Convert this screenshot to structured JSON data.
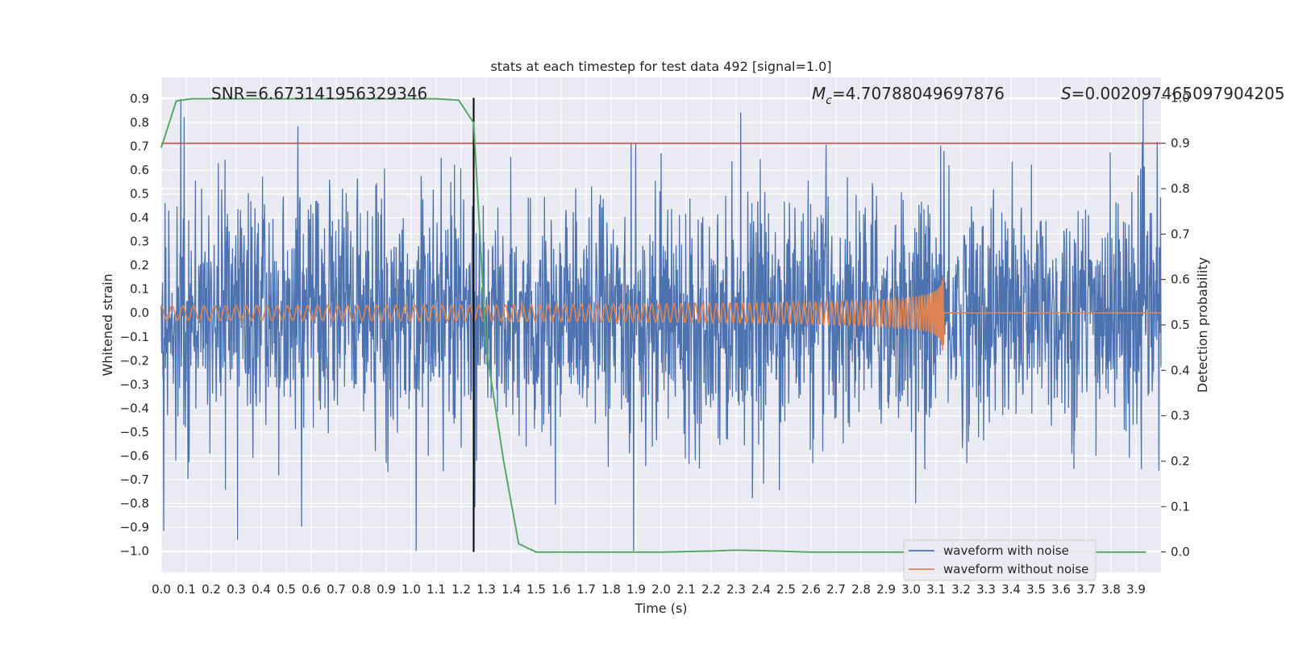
{
  "chart_data": {
    "type": "line",
    "title": "stats at each timestep for test data 492 [signal=1.0]",
    "xlabel": "Time (s)",
    "ylabel_left": "Whitened strain",
    "ylabel_right": "Detection probability",
    "xlim": [
      0.0,
      4.0
    ],
    "ylim_left": [
      -1.09,
      0.99
    ],
    "ylim_right": [
      -0.045,
      1.045
    ],
    "x_ticks": [
      "0.0",
      "0.1",
      "0.2",
      "0.3",
      "0.4",
      "0.5",
      "0.6",
      "0.7",
      "0.8",
      "0.9",
      "1.0",
      "1.1",
      "1.2",
      "1.3",
      "1.4",
      "1.5",
      "1.6",
      "1.7",
      "1.8",
      "1.9",
      "2.0",
      "2.1",
      "2.2",
      "2.3",
      "2.4",
      "2.5",
      "2.6",
      "2.7",
      "2.8",
      "2.9",
      "3.0",
      "3.1",
      "3.2",
      "3.3",
      "3.4",
      "3.5",
      "3.6",
      "3.7",
      "3.8",
      "3.9"
    ],
    "y_ticks_left": [
      "−1.0",
      "−0.9",
      "−0.8",
      "−0.7",
      "−0.6",
      "−0.5",
      "−0.4",
      "−0.3",
      "−0.2",
      "−0.1",
      "0.0",
      "0.1",
      "0.2",
      "0.3",
      "0.4",
      "0.5",
      "0.6",
      "0.7",
      "0.8",
      "0.9"
    ],
    "y_ticks_right": [
      "0.0",
      "0.1",
      "0.2",
      "0.3",
      "0.4",
      "0.5",
      "0.6",
      "0.7",
      "0.8",
      "0.9",
      "1.0"
    ],
    "grid": true,
    "background": "#eaeaf2",
    "legend_position": "bottom-right",
    "annotations": {
      "snr": "SNR=6.673141956329346",
      "mc_symbol": "M",
      "mc_sub": "c",
      "mc_value": "=4.70788049697876",
      "s_symbol": "S",
      "s_value": "=0.002097465097904205"
    },
    "series": [
      {
        "name": "waveform with noise",
        "axis": "left",
        "color": "#4c72b0",
        "description_envelope": {
          "typical_amplitude": 0.45,
          "max": 0.9,
          "min": -1.0
        }
      },
      {
        "name": "waveform without noise",
        "axis": "left",
        "color": "#dd8452",
        "chirp": {
          "start_time": 0.0,
          "merger_time": 3.13,
          "start_amplitude": 0.03,
          "peak_amplitude": 0.19
        }
      },
      {
        "axis": "right",
        "color": "#55a868",
        "x": [
          0.0,
          0.06,
          0.12,
          0.2,
          0.3,
          0.5,
          0.7,
          0.9,
          1.1,
          1.19,
          1.25,
          1.3,
          1.37,
          1.43,
          1.5,
          1.6,
          1.8,
          2.0,
          2.2,
          2.3,
          2.4,
          2.6,
          2.8,
          3.0,
          3.2,
          3.4,
          3.6,
          3.8,
          3.94
        ],
        "y": [
          0.89,
          0.993,
          0.998,
          0.998,
          0.998,
          0.998,
          0.998,
          0.998,
          0.998,
          0.995,
          0.945,
          0.45,
          0.2,
          0.018,
          0.0,
          0.0,
          0.0,
          0.0,
          0.002,
          0.004,
          0.003,
          0.0,
          0.0,
          0.0,
          0.0,
          0.0,
          0.0,
          0.0,
          0.0
        ]
      }
    ],
    "threshold": {
      "axis": "right",
      "value": 0.9,
      "color": "#c44e52"
    },
    "marker_line": {
      "x": 1.25,
      "color": "#000000"
    }
  }
}
